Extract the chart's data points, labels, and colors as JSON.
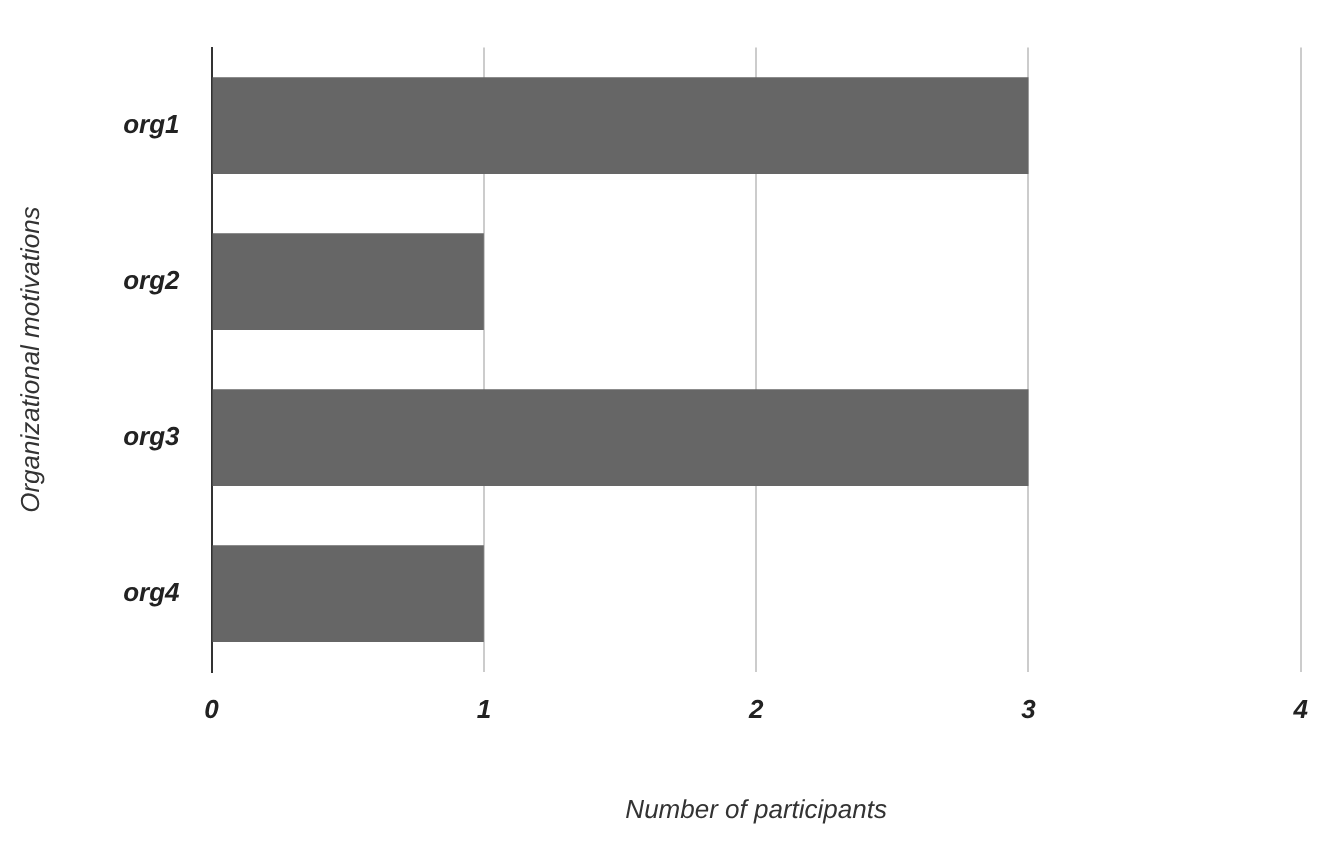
{
  "chart_data": {
    "type": "bar",
    "orientation": "horizontal",
    "xlabel": "Number of participants",
    "ylabel": "Organizational motivations",
    "categories": [
      "org1",
      "org2",
      "org3",
      "org4"
    ],
    "values": [
      3,
      1,
      3,
      1
    ],
    "color": "#666666",
    "xlim": [
      0,
      4
    ],
    "xticks": [
      0,
      1,
      2,
      3,
      4
    ],
    "grid": "x",
    "legend": false
  }
}
